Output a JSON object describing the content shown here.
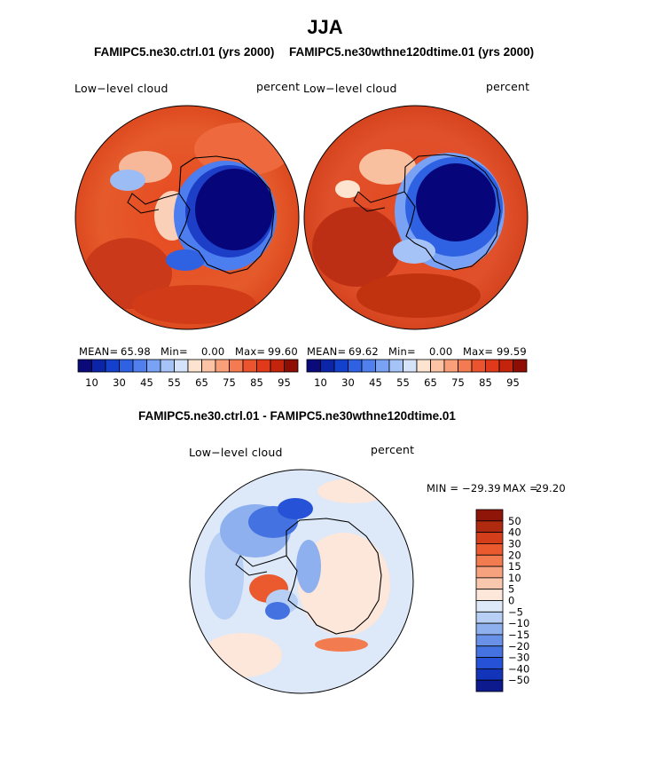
{
  "figure": {
    "title": "JJA",
    "subtitle_left": "FAMIPC5.ne30.ctrl.01 (yrs 2000)",
    "subtitle_right": "FAMIPC5.ne30wthne120dtime.01 (yrs 2000)",
    "diff_title": "FAMIPC5.ne30.ctrl.01 - FAMIPC5.ne30wthne120dtime.01"
  },
  "chart_data": [
    {
      "type": "heatmap",
      "projection": "south-polar-stereographic",
      "variable_label": "Low−level cloud",
      "units_label": "percent",
      "stats": {
        "mean_label": "MEAN=",
        "mean": "65.98",
        "min_label": "Min=",
        "min": "0.00",
        "max_label": "Max=",
        "max": "99.60"
      },
      "colorbar": {
        "colors": [
          "#0a0a7a",
          "#0b24a8",
          "#1441cc",
          "#2f62e2",
          "#4f80ee",
          "#7aa2f4",
          "#a6c3f8",
          "#d4e2fa",
          "#fde4d0",
          "#fcc4a4",
          "#f9a07a",
          "#f47a52",
          "#ec5430",
          "#e03a1a",
          "#c2250c",
          "#8e0d04"
        ],
        "tick_labels": [
          "10",
          "30",
          "45",
          "55",
          "65",
          "75",
          "85",
          "95"
        ]
      }
    },
    {
      "type": "heatmap",
      "projection": "south-polar-stereographic",
      "variable_label": "Low−level cloud",
      "units_label": "percent",
      "stats": {
        "mean_label": "MEAN=",
        "mean": "69.62",
        "min_label": "Min=",
        "min": "0.00",
        "max_label": "Max=",
        "max": "99.59"
      },
      "colorbar": {
        "colors": [
          "#0a0a7a",
          "#0b24a8",
          "#1441cc",
          "#2f62e2",
          "#4f80ee",
          "#7aa2f4",
          "#a6c3f8",
          "#d4e2fa",
          "#fde4d0",
          "#fcc4a4",
          "#f9a07a",
          "#f47a52",
          "#ec5430",
          "#e03a1a",
          "#c2250c",
          "#8e0d04"
        ],
        "tick_labels": [
          "10",
          "30",
          "45",
          "55",
          "65",
          "75",
          "85",
          "95"
        ]
      }
    },
    {
      "type": "heatmap",
      "projection": "south-polar-stereographic",
      "variable_label": "Low−level cloud",
      "units_label": "percent",
      "stats": {
        "min_label": "MIN =",
        "min": "−29.39",
        "max_label": "MAX =",
        "max": "29.20"
      },
      "colorbar": {
        "colors": [
          "#8e1508",
          "#b02a10",
          "#d43e1a",
          "#ea5a2e",
          "#f27c50",
          "#f6a27e",
          "#f9c6ae",
          "#fde6da",
          "#dde9f8",
          "#b7cff4",
          "#8fb0ee",
          "#6a91e8",
          "#4472e0",
          "#2552d6",
          "#1234b8",
          "#0c1a8e"
        ],
        "tick_labels": [
          "50",
          "40",
          "30",
          "20",
          "15",
          "10",
          "5",
          "0",
          "−5",
          "−10",
          "−15",
          "−20",
          "−30",
          "−40",
          "−50"
        ]
      }
    }
  ]
}
